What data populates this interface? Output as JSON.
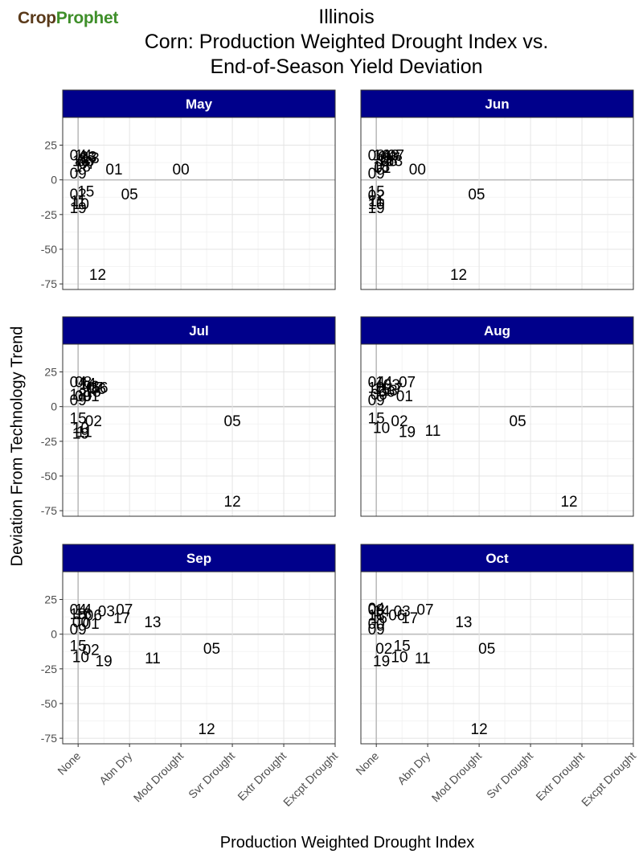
{
  "logo": {
    "part1": "Crop",
    "part2": "Prophet",
    "color1": "#5a3a1a",
    "color2": "#3f8f2a"
  },
  "chart_data": {
    "type": "scatter",
    "title_lines": [
      "Illinois",
      "Corn: Production Weighted Drought Index vs.",
      "End-of-Season Yield Deviation"
    ],
    "xlabel": "Production Weighted Drought Index",
    "ylabel": "Deviation From Technology Trend",
    "x_tick_labels": [
      "None",
      "Abn Dry",
      "Mod Drought",
      "Svr Drought",
      "Extr Drought",
      "Excpt Drought"
    ],
    "xlim": [
      -0.3,
      5.0
    ],
    "ylim": [
      -79,
      45
    ],
    "y_ticks": [
      25,
      0,
      -25,
      -50,
      -75
    ],
    "grid": true,
    "strip_color": "#00008b",
    "panels": [
      {
        "title": "May",
        "points": [
          {
            "label": "04",
            "x": 0.0,
            "y": 18
          },
          {
            "label": "14",
            "x": 0.1,
            "y": 18
          },
          {
            "label": "03",
            "x": 0.2,
            "y": 17
          },
          {
            "label": "16",
            "x": 0.05,
            "y": 14
          },
          {
            "label": "06",
            "x": 0.15,
            "y": 14
          },
          {
            "label": "17",
            "x": 0.2,
            "y": 16
          },
          {
            "label": "13",
            "x": 0.25,
            "y": 16
          },
          {
            "label": "18",
            "x": 0.08,
            "y": 10
          },
          {
            "label": "07",
            "x": 0.18,
            "y": 12
          },
          {
            "label": "01",
            "x": 0.7,
            "y": 8
          },
          {
            "label": "09",
            "x": 0.0,
            "y": 5
          },
          {
            "label": "00",
            "x": 2.0,
            "y": 8
          },
          {
            "label": "02",
            "x": 0.0,
            "y": -10
          },
          {
            "label": "15",
            "x": 0.15,
            "y": -8
          },
          {
            "label": "05",
            "x": 1.0,
            "y": -10
          },
          {
            "label": "11",
            "x": 0.0,
            "y": -15
          },
          {
            "label": "10",
            "x": 0.05,
            "y": -17
          },
          {
            "label": "19",
            "x": 0.0,
            "y": -20
          },
          {
            "label": "12",
            "x": 0.38,
            "y": -68
          }
        ]
      },
      {
        "title": "Jun",
        "points": [
          {
            "label": "08",
            "x": 0.0,
            "y": 18
          },
          {
            "label": "14",
            "x": 0.1,
            "y": 18
          },
          {
            "label": "04",
            "x": 0.2,
            "y": 17
          },
          {
            "label": "03",
            "x": 0.28,
            "y": 18
          },
          {
            "label": "07",
            "x": 0.38,
            "y": 18
          },
          {
            "label": "16",
            "x": 0.18,
            "y": 14
          },
          {
            "label": "06",
            "x": 0.25,
            "y": 14
          },
          {
            "label": "17",
            "x": 0.3,
            "y": 16
          },
          {
            "label": "13",
            "x": 0.35,
            "y": 14
          },
          {
            "label": "18",
            "x": 0.1,
            "y": 10
          },
          {
            "label": "01",
            "x": 0.12,
            "y": 9
          },
          {
            "label": "09",
            "x": 0.0,
            "y": 5
          },
          {
            "label": "00",
            "x": 0.8,
            "y": 8
          },
          {
            "label": "15",
            "x": 0.0,
            "y": -8
          },
          {
            "label": "02",
            "x": 0.0,
            "y": -11
          },
          {
            "label": "05",
            "x": 1.95,
            "y": -10
          },
          {
            "label": "11",
            "x": 0.0,
            "y": -15
          },
          {
            "label": "10",
            "x": 0.0,
            "y": -17
          },
          {
            "label": "19",
            "x": 0.0,
            "y": -20
          },
          {
            "label": "12",
            "x": 1.6,
            "y": -68
          }
        ]
      },
      {
        "title": "Jul",
        "points": [
          {
            "label": "04",
            "x": 0.0,
            "y": 18
          },
          {
            "label": "08",
            "x": 0.1,
            "y": 18
          },
          {
            "label": "14",
            "x": 0.18,
            "y": 17
          },
          {
            "label": "03",
            "x": 0.25,
            "y": 15
          },
          {
            "label": "07",
            "x": 0.32,
            "y": 14
          },
          {
            "label": "16",
            "x": 0.42,
            "y": 14
          },
          {
            "label": "06",
            "x": 0.38,
            "y": 13
          },
          {
            "label": "13",
            "x": 0.28,
            "y": 11
          },
          {
            "label": "18",
            "x": 0.0,
            "y": 9
          },
          {
            "label": "00",
            "x": 0.1,
            "y": 8
          },
          {
            "label": "01",
            "x": 0.25,
            "y": 8
          },
          {
            "label": "09",
            "x": 0.0,
            "y": 5
          },
          {
            "label": "15",
            "x": 0.0,
            "y": -8
          },
          {
            "label": "02",
            "x": 0.3,
            "y": -10
          },
          {
            "label": "05",
            "x": 3.0,
            "y": -10
          },
          {
            "label": "10",
            "x": 0.05,
            "y": -15
          },
          {
            "label": "11",
            "x": 0.12,
            "y": -18
          },
          {
            "label": "19",
            "x": 0.05,
            "y": -19
          },
          {
            "label": "12",
            "x": 3.0,
            "y": -68
          }
        ]
      },
      {
        "title": "Aug",
        "points": [
          {
            "label": "04",
            "x": 0.0,
            "y": 18
          },
          {
            "label": "14",
            "x": 0.15,
            "y": 18
          },
          {
            "label": "03",
            "x": 0.3,
            "y": 16
          },
          {
            "label": "07",
            "x": 0.6,
            "y": 18
          },
          {
            "label": "18",
            "x": 0.0,
            "y": 14
          },
          {
            "label": "16",
            "x": 0.1,
            "y": 13
          },
          {
            "label": "17",
            "x": 0.35,
            "y": 13
          },
          {
            "label": "13",
            "x": 0.25,
            "y": 12
          },
          {
            "label": "00",
            "x": 0.05,
            "y": 9
          },
          {
            "label": "06",
            "x": 0.2,
            "y": 11
          },
          {
            "label": "01",
            "x": 0.55,
            "y": 8
          },
          {
            "label": "09",
            "x": 0.0,
            "y": 5
          },
          {
            "label": "15",
            "x": 0.0,
            "y": -8
          },
          {
            "label": "02",
            "x": 0.45,
            "y": -10
          },
          {
            "label": "05",
            "x": 2.75,
            "y": -10
          },
          {
            "label": "10",
            "x": 0.1,
            "y": -15
          },
          {
            "label": "19",
            "x": 0.6,
            "y": -18
          },
          {
            "label": "11",
            "x": 1.1,
            "y": -17
          },
          {
            "label": "12",
            "x": 3.75,
            "y": -68
          }
        ]
      },
      {
        "title": "Sep",
        "points": [
          {
            "label": "04",
            "x": 0.0,
            "y": 18
          },
          {
            "label": "14",
            "x": 0.1,
            "y": 18
          },
          {
            "label": "03",
            "x": 0.55,
            "y": 17
          },
          {
            "label": "07",
            "x": 0.9,
            "y": 18
          },
          {
            "label": "18",
            "x": 0.0,
            "y": 15
          },
          {
            "label": "16",
            "x": 0.1,
            "y": 15
          },
          {
            "label": "06",
            "x": 0.3,
            "y": 14
          },
          {
            "label": "17",
            "x": 0.85,
            "y": 12
          },
          {
            "label": "13",
            "x": 1.45,
            "y": 9
          },
          {
            "label": "00",
            "x": 0.05,
            "y": 9
          },
          {
            "label": "01",
            "x": 0.25,
            "y": 8
          },
          {
            "label": "09",
            "x": 0.0,
            "y": 4
          },
          {
            "label": "15",
            "x": 0.0,
            "y": -8
          },
          {
            "label": "02",
            "x": 0.25,
            "y": -11
          },
          {
            "label": "05",
            "x": 2.6,
            "y": -10
          },
          {
            "label": "10",
            "x": 0.05,
            "y": -16
          },
          {
            "label": "19",
            "x": 0.5,
            "y": -19
          },
          {
            "label": "11",
            "x": 1.45,
            "y": -17
          },
          {
            "label": "12",
            "x": 2.5,
            "y": -68
          }
        ]
      },
      {
        "title": "Oct",
        "points": [
          {
            "label": "04",
            "x": 0.0,
            "y": 19
          },
          {
            "label": "08",
            "x": 0.0,
            "y": 18
          },
          {
            "label": "14",
            "x": 0.1,
            "y": 17
          },
          {
            "label": "03",
            "x": 0.5,
            "y": 17
          },
          {
            "label": "07",
            "x": 0.95,
            "y": 18
          },
          {
            "label": "18",
            "x": 0.0,
            "y": 14
          },
          {
            "label": "16",
            "x": 0.05,
            "y": 12
          },
          {
            "label": "06",
            "x": 0.4,
            "y": 14
          },
          {
            "label": "17",
            "x": 0.65,
            "y": 12
          },
          {
            "label": "13",
            "x": 1.7,
            "y": 9
          },
          {
            "label": "00",
            "x": 0.0,
            "y": 8
          },
          {
            "label": "09",
            "x": 0.0,
            "y": 4
          },
          {
            "label": "02",
            "x": 0.15,
            "y": -10
          },
          {
            "label": "15",
            "x": 0.5,
            "y": -8
          },
          {
            "label": "05",
            "x": 2.15,
            "y": -10
          },
          {
            "label": "10",
            "x": 0.45,
            "y": -16
          },
          {
            "label": "11",
            "x": 0.9,
            "y": -17
          },
          {
            "label": "19",
            "x": 0.1,
            "y": -19
          },
          {
            "label": "12",
            "x": 2.0,
            "y": -68
          }
        ]
      }
    ]
  }
}
